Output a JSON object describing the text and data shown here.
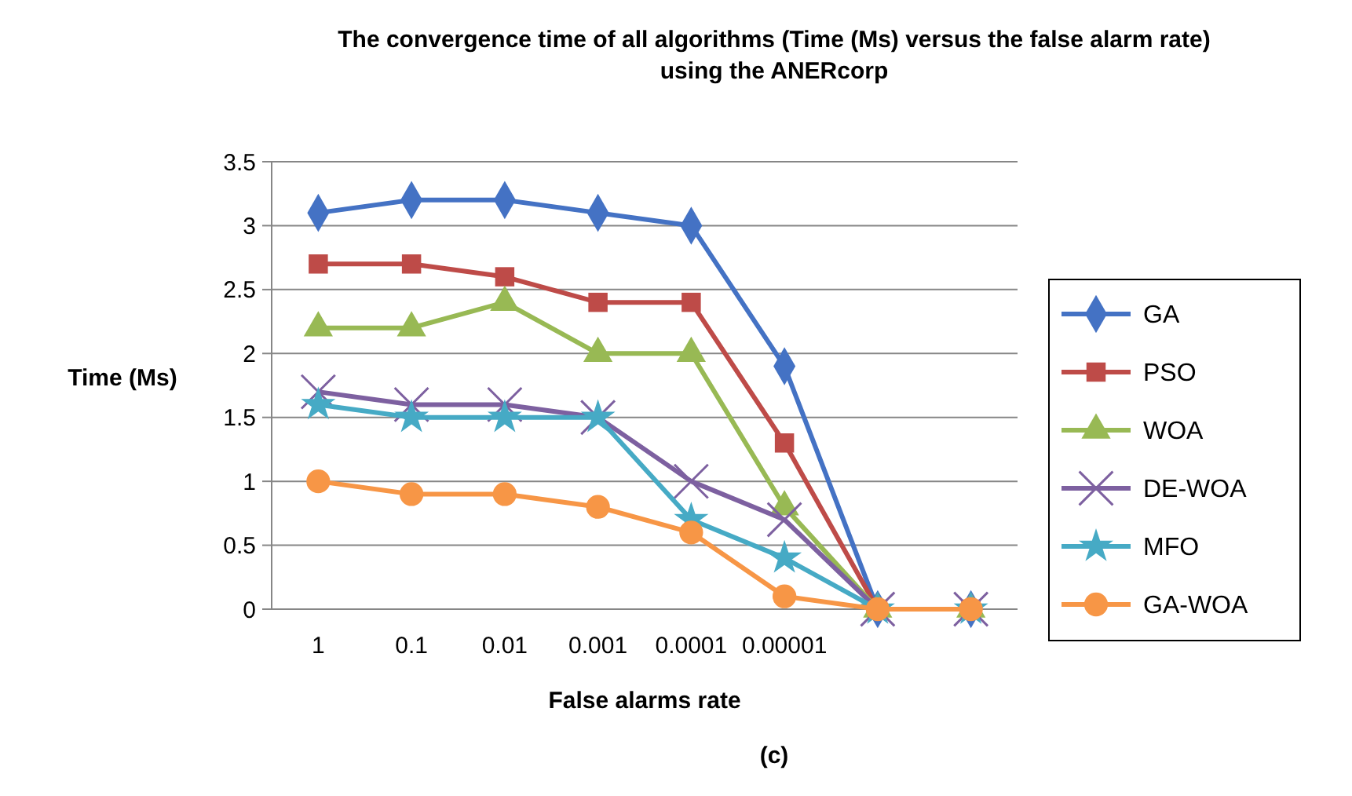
{
  "chart_data": {
    "type": "line",
    "title": "The convergence time of all algorithms (Time (Ms) versus the false alarm rate) using the ANERcorp",
    "xlabel": "False alarms rate",
    "ylabel": "Time (Ms)",
    "categories": [
      "1",
      "0.1",
      "0.01",
      "0.001",
      "0.0001",
      "0.00001",
      null,
      null
    ],
    "series": [
      {
        "name": "GA",
        "color": "#4472c4",
        "marker": "diamond",
        "values": [
          3.1,
          3.2,
          3.2,
          3.1,
          3.0,
          1.9,
          0,
          0
        ]
      },
      {
        "name": "PSO",
        "color": "#be4b48",
        "marker": "square",
        "values": [
          2.7,
          2.7,
          2.6,
          2.4,
          2.4,
          1.3,
          0,
          0
        ]
      },
      {
        "name": "WOA",
        "color": "#98b954",
        "marker": "triangle",
        "values": [
          2.2,
          2.2,
          2.4,
          2.0,
          2.0,
          0.8,
          0,
          0
        ]
      },
      {
        "name": "DE-WOA",
        "color": "#7d60a0",
        "marker": "cross",
        "values": [
          1.7,
          1.6,
          1.6,
          1.5,
          1.0,
          0.7,
          0,
          0
        ]
      },
      {
        "name": "MFO",
        "color": "#46aac5",
        "marker": "star",
        "values": [
          1.6,
          1.5,
          1.5,
          1.5,
          0.7,
          0.4,
          0,
          0
        ]
      },
      {
        "name": "GA-WOA",
        "color": "#f79646",
        "marker": "circle",
        "values": [
          1.0,
          0.9,
          0.9,
          0.8,
          0.6,
          0.1,
          0,
          0
        ]
      }
    ],
    "ylim": [
      0,
      3.5
    ],
    "yticks": [
      0,
      0.5,
      1,
      1.5,
      2,
      2.5,
      3,
      3.5
    ],
    "grid": "y",
    "legend": "right",
    "annotations": [
      "(c)"
    ]
  }
}
